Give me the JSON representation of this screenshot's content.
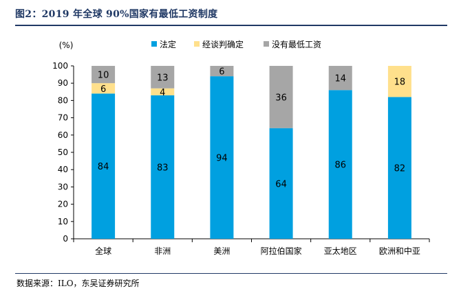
{
  "title": "图2：2019 年全球 90%国家有最低工资制度",
  "source": "数据来源：ILO，东吴证券研究所",
  "colors": {
    "title": "#1f3864",
    "statutory": "#00a0e0",
    "negotiated": "#ffe08c",
    "none": "#a6a6a6"
  },
  "chart_data": {
    "type": "bar",
    "stacked": true,
    "ylabel": "(%)",
    "ylim": [
      0,
      100
    ],
    "yticks": [
      0,
      10,
      20,
      30,
      40,
      50,
      60,
      70,
      80,
      90,
      100
    ],
    "categories": [
      "全球",
      "非洲",
      "美洲",
      "阿拉伯国家",
      "亚太地区",
      "欧洲和中亚"
    ],
    "legend_position": "top",
    "series": [
      {
        "name": "法定",
        "color": "#00a0e0",
        "values": [
          84,
          83,
          94,
          64,
          86,
          82
        ]
      },
      {
        "name": "经谈判确定",
        "color": "#ffe08c",
        "values": [
          6,
          4,
          0,
          0,
          0,
          18
        ]
      },
      {
        "name": "没有最低工资",
        "color": "#a6a6a6",
        "values": [
          10,
          13,
          6,
          36,
          14,
          0
        ]
      }
    ]
  }
}
